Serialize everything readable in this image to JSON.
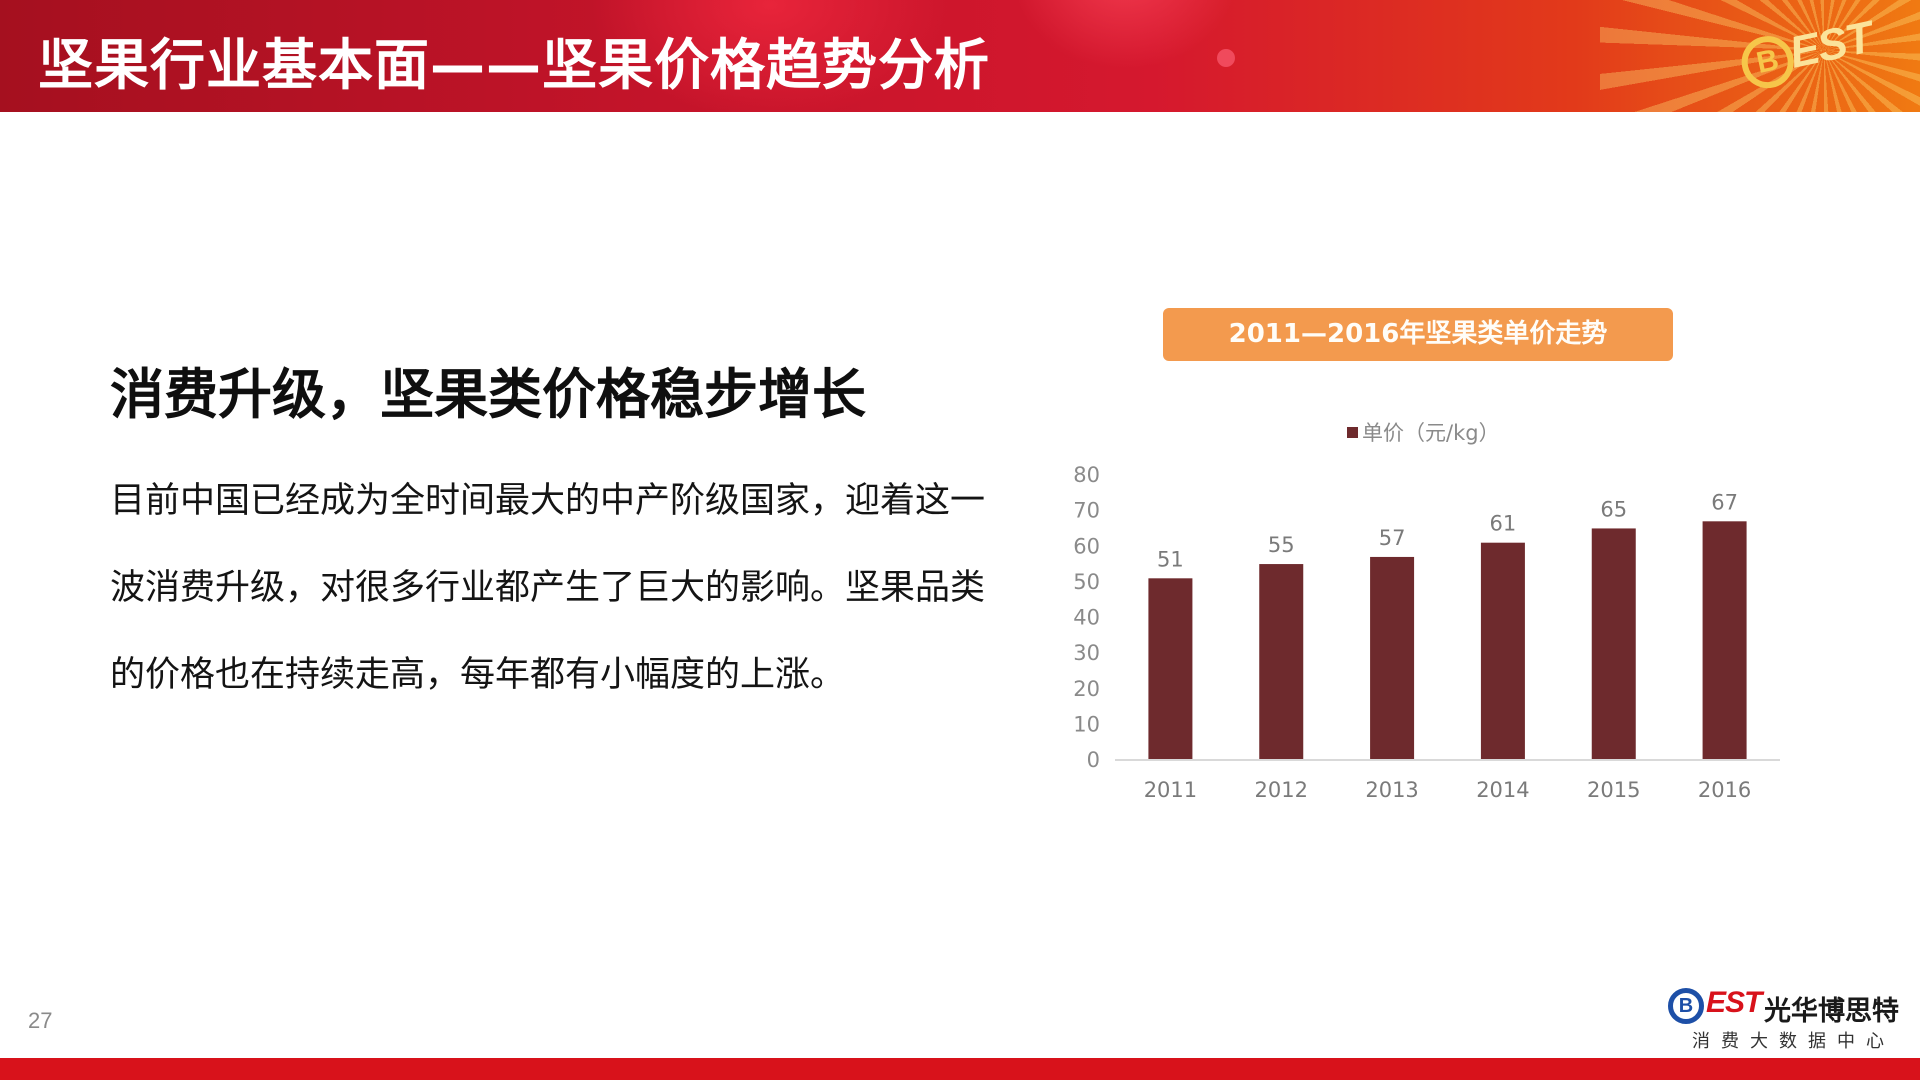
{
  "slide": {
    "title": "坚果行业基本面——坚果价格趋势分析",
    "headline": "消费升级，坚果类价格稳步增长",
    "body": "目前中国已经成为全时间最大的中产阶级国家，迎着这一波消费升级，对很多行业都产生了巨大的影响。坚果品类的价格也在持续走高，每年都有小幅度的上涨。",
    "page_number": "27"
  },
  "banner_logo": {
    "b": "B",
    "text": "EST"
  },
  "footer_logo": {
    "b": "B",
    "est": "EST",
    "name": "光华博思特",
    "subtitle": "消费大数据中心"
  },
  "colors": {
    "banner_red": "#c4142a",
    "bar": "#6e2a2d",
    "title_pill": "#f39a4e",
    "footer_bar": "#d8121b"
  },
  "chart_data": {
    "type": "bar",
    "title": "2011—2016年坚果类单价走势",
    "categories": [
      "2011",
      "2012",
      "2013",
      "2014",
      "2015",
      "2016"
    ],
    "series": [
      {
        "name": "单价（元/kg）",
        "values": [
          51,
          55,
          57,
          61,
          65,
          67
        ],
        "color": "#6e2a2d"
      }
    ],
    "y_ticks": [
      0,
      10,
      20,
      30,
      40,
      50,
      60,
      70,
      80
    ],
    "ylim": [
      0,
      80
    ],
    "grid": false,
    "legend": "top-center",
    "data_labels": true
  }
}
